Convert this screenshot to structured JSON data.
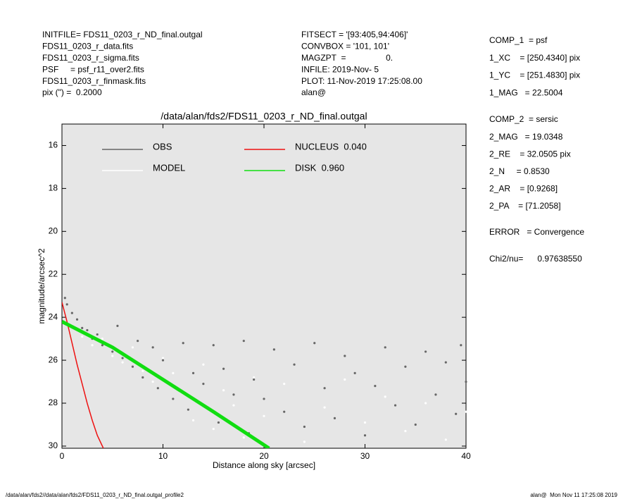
{
  "header_left": [
    "INITFILE= FDS11_0203_r_ND_final.outgal",
    "FDS11_0203_r_data.fits",
    "FDS11_0203_r_sigma.fits",
    "PSF     = psf_r11_over2.fits",
    "FDS11_0203_r_finmask.fits",
    "pix (\") =  0.2000"
  ],
  "header_middle": [
    "FITSECT = '[93:405,94:406]'",
    "CONVBOX = '101, 101'",
    "MAGZPT  =                 0.",
    "INFILE: 2019-Nov- 5",
    "PLOT: 11-Nov-2019 17:25:08.00",
    "alan@"
  ],
  "params_comp1": [
    "COMP_1  = psf",
    "1_XC    = [250.4340] pix",
    "1_YC    = [251.4830] pix",
    "1_MAG   = 22.5004"
  ],
  "params_comp2": [
    "COMP_2  = sersic",
    "2_MAG   = 19.0348",
    "2_RE    = 32.0505 pix",
    "2_N     = 0.8530",
    "2_AR    = [0.9268]",
    "2_PA    = [71.2058]"
  ],
  "params_error": "ERROR   = Convergence",
  "params_chi2": "Chi2/nu=      0.97638550",
  "footer_left": "/data/alan/fds2//data/alan/fds2/FDS11_0203_r_ND_final.outgal_profile2",
  "footer_right": "alan@  Mon Nov 11 17:25:08 2019",
  "chart_data": {
    "type": "scatter",
    "title": "/data/alan/fds2/FDS11_0203_r_ND_final.outgal",
    "xlabel": "Distance along sky [arcsec]",
    "ylabel": "magnitude/arcsec^2",
    "xlim": [
      0,
      40
    ],
    "xticks": [
      0,
      10,
      20,
      30,
      40
    ],
    "ylim": [
      30.1,
      15
    ],
    "yticks": [
      16,
      18,
      20,
      22,
      24,
      26,
      28,
      30
    ],
    "background": "#e6e6e6",
    "series": [
      {
        "name": "OBS",
        "color": "#666666",
        "mode": "markers",
        "x": [
          0.3,
          0.5,
          1,
          1.5,
          2,
          2.5,
          3,
          3.5,
          4,
          5,
          5.5,
          6,
          7,
          7.5,
          8,
          9,
          9.5,
          10,
          11,
          12,
          12.5,
          13,
          14,
          15,
          15.5,
          16,
          17,
          18,
          18.5,
          19,
          20,
          21,
          22,
          23,
          24,
          25,
          26,
          27,
          28,
          29,
          30,
          31,
          32,
          33,
          34,
          35,
          36,
          37,
          38,
          39,
          39.5,
          40
        ],
        "values": [
          23.1,
          23.4,
          23.8,
          24.1,
          24.5,
          24.6,
          25.0,
          24.8,
          25.3,
          25.6,
          24.4,
          25.9,
          26.3,
          25.1,
          26.8,
          25.4,
          27.3,
          26.0,
          27.8,
          25.2,
          28.3,
          26.6,
          27.1,
          25.3,
          28.9,
          26.4,
          27.6,
          25.1,
          29.4,
          26.9,
          27.8,
          25.5,
          28.4,
          26.2,
          29.1,
          25.2,
          27.3,
          28.7,
          25.8,
          26.6,
          29.5,
          27.2,
          25.4,
          28.1,
          26.3,
          29.0,
          25.6,
          27.6,
          26.1,
          28.5,
          25.3,
          27.0
        ]
      },
      {
        "name": "MODEL",
        "color": "#ffffff",
        "mode": "markers",
        "x": [
          1,
          2,
          3,
          4,
          5,
          6,
          7,
          8,
          9,
          10,
          11,
          12,
          13,
          14,
          15,
          16,
          17,
          18,
          19,
          20,
          22,
          24,
          26,
          28,
          30,
          32,
          34,
          36,
          38,
          40
        ],
        "values": [
          24.4,
          24.9,
          25.3,
          25.0,
          25.8,
          26.1,
          25.4,
          26.5,
          27.0,
          25.9,
          26.6,
          27.5,
          28.8,
          26.2,
          29.2,
          27.4,
          28.1,
          29.6,
          26.8,
          28.6,
          27.1,
          29.8,
          28.2,
          26.9,
          28.9,
          27.7,
          29.3,
          28.0,
          29.7,
          28.4
        ]
      },
      {
        "name": "NUCLEUS  0.040",
        "color": "#ee1111",
        "mode": "lines",
        "x": [
          0,
          0.5,
          1,
          1.5,
          2,
          2.5,
          3,
          3.5,
          4.1
        ],
        "values": [
          23.3,
          24.2,
          25.2,
          26.2,
          27.1,
          28.0,
          28.8,
          29.5,
          30.1
        ]
      },
      {
        "name": "DISK  0.960",
        "color": "#11dd11",
        "mode": "lines",
        "x": [
          0,
          5,
          10,
          15,
          20.5
        ],
        "values": [
          24.2,
          25.4,
          26.9,
          28.4,
          30.1
        ]
      }
    ]
  }
}
